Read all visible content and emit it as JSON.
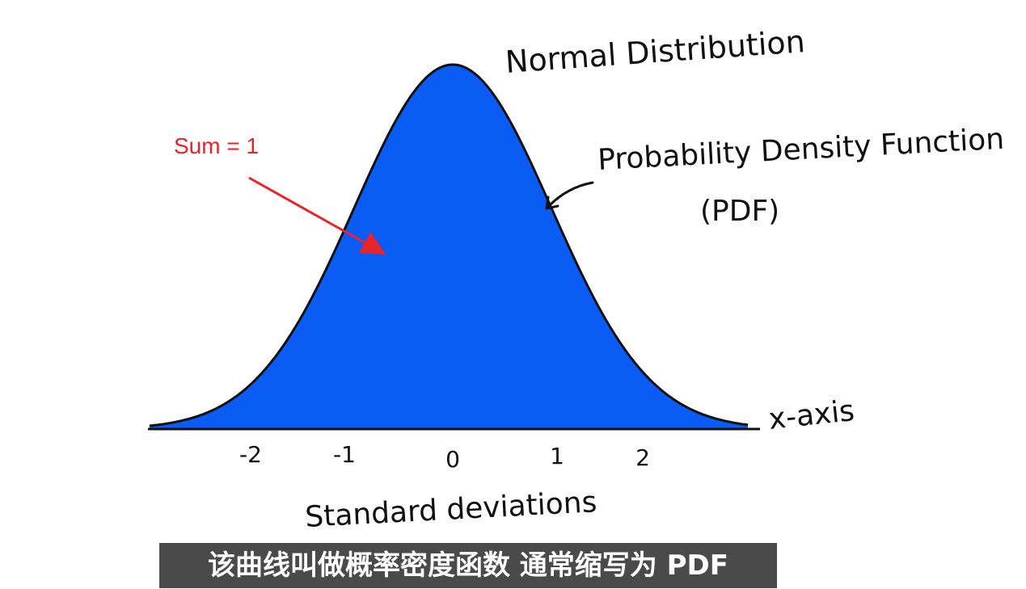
{
  "diagram": {
    "title": "Normal Distribution",
    "curve_label_line1": "Probability Density Function",
    "curve_label_line2": "(PDF)",
    "x_axis_label": "x-axis",
    "x_ticks": [
      "-2",
      "-1",
      "0",
      "1",
      "2"
    ],
    "x_axis_caption": "Standard deviations",
    "annotation": "Sum = 1",
    "colors": {
      "fill": "#0a5cf5",
      "outline": "#111111",
      "annotation": "#e8232a"
    }
  },
  "subtitle": {
    "text": "该曲线叫做概率密度函数 通常缩写为 PDF"
  }
}
